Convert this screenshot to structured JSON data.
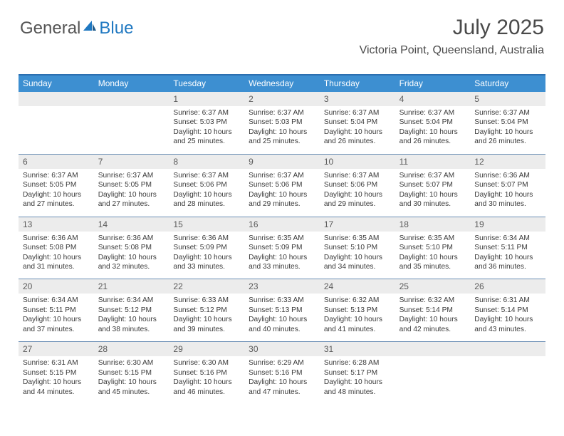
{
  "logo": {
    "part1": "General",
    "part2": "Blue"
  },
  "header": {
    "month_title": "July 2025",
    "location": "Victoria Point, Queensland, Australia"
  },
  "calendar": {
    "header_bg": "#3d8fd1",
    "header_fg": "#ffffff",
    "daynum_bg": "#ececec",
    "border_color": "#2b6fb0",
    "day_labels": [
      "Sunday",
      "Monday",
      "Tuesday",
      "Wednesday",
      "Thursday",
      "Friday",
      "Saturday"
    ],
    "weeks": [
      {
        "cells": [
          {
            "num": "",
            "lines": [
              "",
              "",
              "",
              ""
            ]
          },
          {
            "num": "",
            "lines": [
              "",
              "",
              "",
              ""
            ]
          },
          {
            "num": "1",
            "lines": [
              "Sunrise: 6:37 AM",
              "Sunset: 5:03 PM",
              "Daylight: 10 hours",
              "and 25 minutes."
            ]
          },
          {
            "num": "2",
            "lines": [
              "Sunrise: 6:37 AM",
              "Sunset: 5:03 PM",
              "Daylight: 10 hours",
              "and 25 minutes."
            ]
          },
          {
            "num": "3",
            "lines": [
              "Sunrise: 6:37 AM",
              "Sunset: 5:04 PM",
              "Daylight: 10 hours",
              "and 26 minutes."
            ]
          },
          {
            "num": "4",
            "lines": [
              "Sunrise: 6:37 AM",
              "Sunset: 5:04 PM",
              "Daylight: 10 hours",
              "and 26 minutes."
            ]
          },
          {
            "num": "5",
            "lines": [
              "Sunrise: 6:37 AM",
              "Sunset: 5:04 PM",
              "Daylight: 10 hours",
              "and 26 minutes."
            ]
          }
        ]
      },
      {
        "cells": [
          {
            "num": "6",
            "lines": [
              "Sunrise: 6:37 AM",
              "Sunset: 5:05 PM",
              "Daylight: 10 hours",
              "and 27 minutes."
            ]
          },
          {
            "num": "7",
            "lines": [
              "Sunrise: 6:37 AM",
              "Sunset: 5:05 PM",
              "Daylight: 10 hours",
              "and 27 minutes."
            ]
          },
          {
            "num": "8",
            "lines": [
              "Sunrise: 6:37 AM",
              "Sunset: 5:06 PM",
              "Daylight: 10 hours",
              "and 28 minutes."
            ]
          },
          {
            "num": "9",
            "lines": [
              "Sunrise: 6:37 AM",
              "Sunset: 5:06 PM",
              "Daylight: 10 hours",
              "and 29 minutes."
            ]
          },
          {
            "num": "10",
            "lines": [
              "Sunrise: 6:37 AM",
              "Sunset: 5:06 PM",
              "Daylight: 10 hours",
              "and 29 minutes."
            ]
          },
          {
            "num": "11",
            "lines": [
              "Sunrise: 6:37 AM",
              "Sunset: 5:07 PM",
              "Daylight: 10 hours",
              "and 30 minutes."
            ]
          },
          {
            "num": "12",
            "lines": [
              "Sunrise: 6:36 AM",
              "Sunset: 5:07 PM",
              "Daylight: 10 hours",
              "and 30 minutes."
            ]
          }
        ]
      },
      {
        "cells": [
          {
            "num": "13",
            "lines": [
              "Sunrise: 6:36 AM",
              "Sunset: 5:08 PM",
              "Daylight: 10 hours",
              "and 31 minutes."
            ]
          },
          {
            "num": "14",
            "lines": [
              "Sunrise: 6:36 AM",
              "Sunset: 5:08 PM",
              "Daylight: 10 hours",
              "and 32 minutes."
            ]
          },
          {
            "num": "15",
            "lines": [
              "Sunrise: 6:36 AM",
              "Sunset: 5:09 PM",
              "Daylight: 10 hours",
              "and 33 minutes."
            ]
          },
          {
            "num": "16",
            "lines": [
              "Sunrise: 6:35 AM",
              "Sunset: 5:09 PM",
              "Daylight: 10 hours",
              "and 33 minutes."
            ]
          },
          {
            "num": "17",
            "lines": [
              "Sunrise: 6:35 AM",
              "Sunset: 5:10 PM",
              "Daylight: 10 hours",
              "and 34 minutes."
            ]
          },
          {
            "num": "18",
            "lines": [
              "Sunrise: 6:35 AM",
              "Sunset: 5:10 PM",
              "Daylight: 10 hours",
              "and 35 minutes."
            ]
          },
          {
            "num": "19",
            "lines": [
              "Sunrise: 6:34 AM",
              "Sunset: 5:11 PM",
              "Daylight: 10 hours",
              "and 36 minutes."
            ]
          }
        ]
      },
      {
        "cells": [
          {
            "num": "20",
            "lines": [
              "Sunrise: 6:34 AM",
              "Sunset: 5:11 PM",
              "Daylight: 10 hours",
              "and 37 minutes."
            ]
          },
          {
            "num": "21",
            "lines": [
              "Sunrise: 6:34 AM",
              "Sunset: 5:12 PM",
              "Daylight: 10 hours",
              "and 38 minutes."
            ]
          },
          {
            "num": "22",
            "lines": [
              "Sunrise: 6:33 AM",
              "Sunset: 5:12 PM",
              "Daylight: 10 hours",
              "and 39 minutes."
            ]
          },
          {
            "num": "23",
            "lines": [
              "Sunrise: 6:33 AM",
              "Sunset: 5:13 PM",
              "Daylight: 10 hours",
              "and 40 minutes."
            ]
          },
          {
            "num": "24",
            "lines": [
              "Sunrise: 6:32 AM",
              "Sunset: 5:13 PM",
              "Daylight: 10 hours",
              "and 41 minutes."
            ]
          },
          {
            "num": "25",
            "lines": [
              "Sunrise: 6:32 AM",
              "Sunset: 5:14 PM",
              "Daylight: 10 hours",
              "and 42 minutes."
            ]
          },
          {
            "num": "26",
            "lines": [
              "Sunrise: 6:31 AM",
              "Sunset: 5:14 PM",
              "Daylight: 10 hours",
              "and 43 minutes."
            ]
          }
        ]
      },
      {
        "cells": [
          {
            "num": "27",
            "lines": [
              "Sunrise: 6:31 AM",
              "Sunset: 5:15 PM",
              "Daylight: 10 hours",
              "and 44 minutes."
            ]
          },
          {
            "num": "28",
            "lines": [
              "Sunrise: 6:30 AM",
              "Sunset: 5:15 PM",
              "Daylight: 10 hours",
              "and 45 minutes."
            ]
          },
          {
            "num": "29",
            "lines": [
              "Sunrise: 6:30 AM",
              "Sunset: 5:16 PM",
              "Daylight: 10 hours",
              "and 46 minutes."
            ]
          },
          {
            "num": "30",
            "lines": [
              "Sunrise: 6:29 AM",
              "Sunset: 5:16 PM",
              "Daylight: 10 hours",
              "and 47 minutes."
            ]
          },
          {
            "num": "31",
            "lines": [
              "Sunrise: 6:28 AM",
              "Sunset: 5:17 PM",
              "Daylight: 10 hours",
              "and 48 minutes."
            ]
          },
          {
            "num": "",
            "lines": [
              "",
              "",
              "",
              ""
            ]
          },
          {
            "num": "",
            "lines": [
              "",
              "",
              "",
              ""
            ]
          }
        ]
      }
    ]
  }
}
